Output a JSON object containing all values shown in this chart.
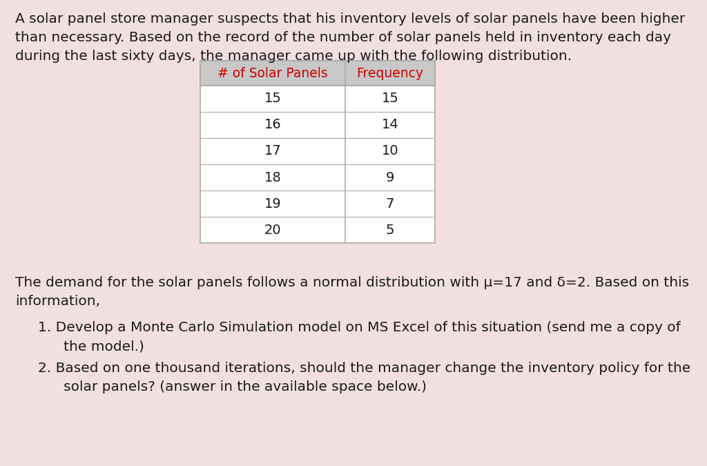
{
  "background_color": "#f2e0e0",
  "intro_text_lines": [
    "A solar panel store manager suspects that his inventory levels of solar panels have been higher",
    "than necessary. Based on the record of the number of solar panels held in inventory each day",
    "during the last sixty days, the manager came up with the following distribution."
  ],
  "table_header": [
    "# of Solar Panels",
    "Frequency"
  ],
  "table_data": [
    [
      15,
      15
    ],
    [
      16,
      14
    ],
    [
      17,
      10
    ],
    [
      18,
      9
    ],
    [
      19,
      7
    ],
    [
      20,
      5
    ]
  ],
  "demand_text_lines": [
    "The demand for the solar panels follows a normal distribution with μ=17 and δ=2. Based on this",
    "information,"
  ],
  "point1_lines": [
    "1. Develop a Monte Carlo Simulation model on MS Excel of this situation (send me a copy of",
    "   the model.)"
  ],
  "point2_lines": [
    "2. Based on one thousand iterations, should the manager change the inventory policy for the",
    "   solar panels? (answer in the available space below.)"
  ],
  "header_bg_color": "#c8c8c8",
  "table_bg_color": "#ffffff",
  "table_border_color": "#aaaaaa",
  "text_color": "#1a1a1a",
  "header_text_color": "#cc0000",
  "font_size_body": 14.5,
  "font_size_table_data": 14.0,
  "font_size_header": 13.5
}
